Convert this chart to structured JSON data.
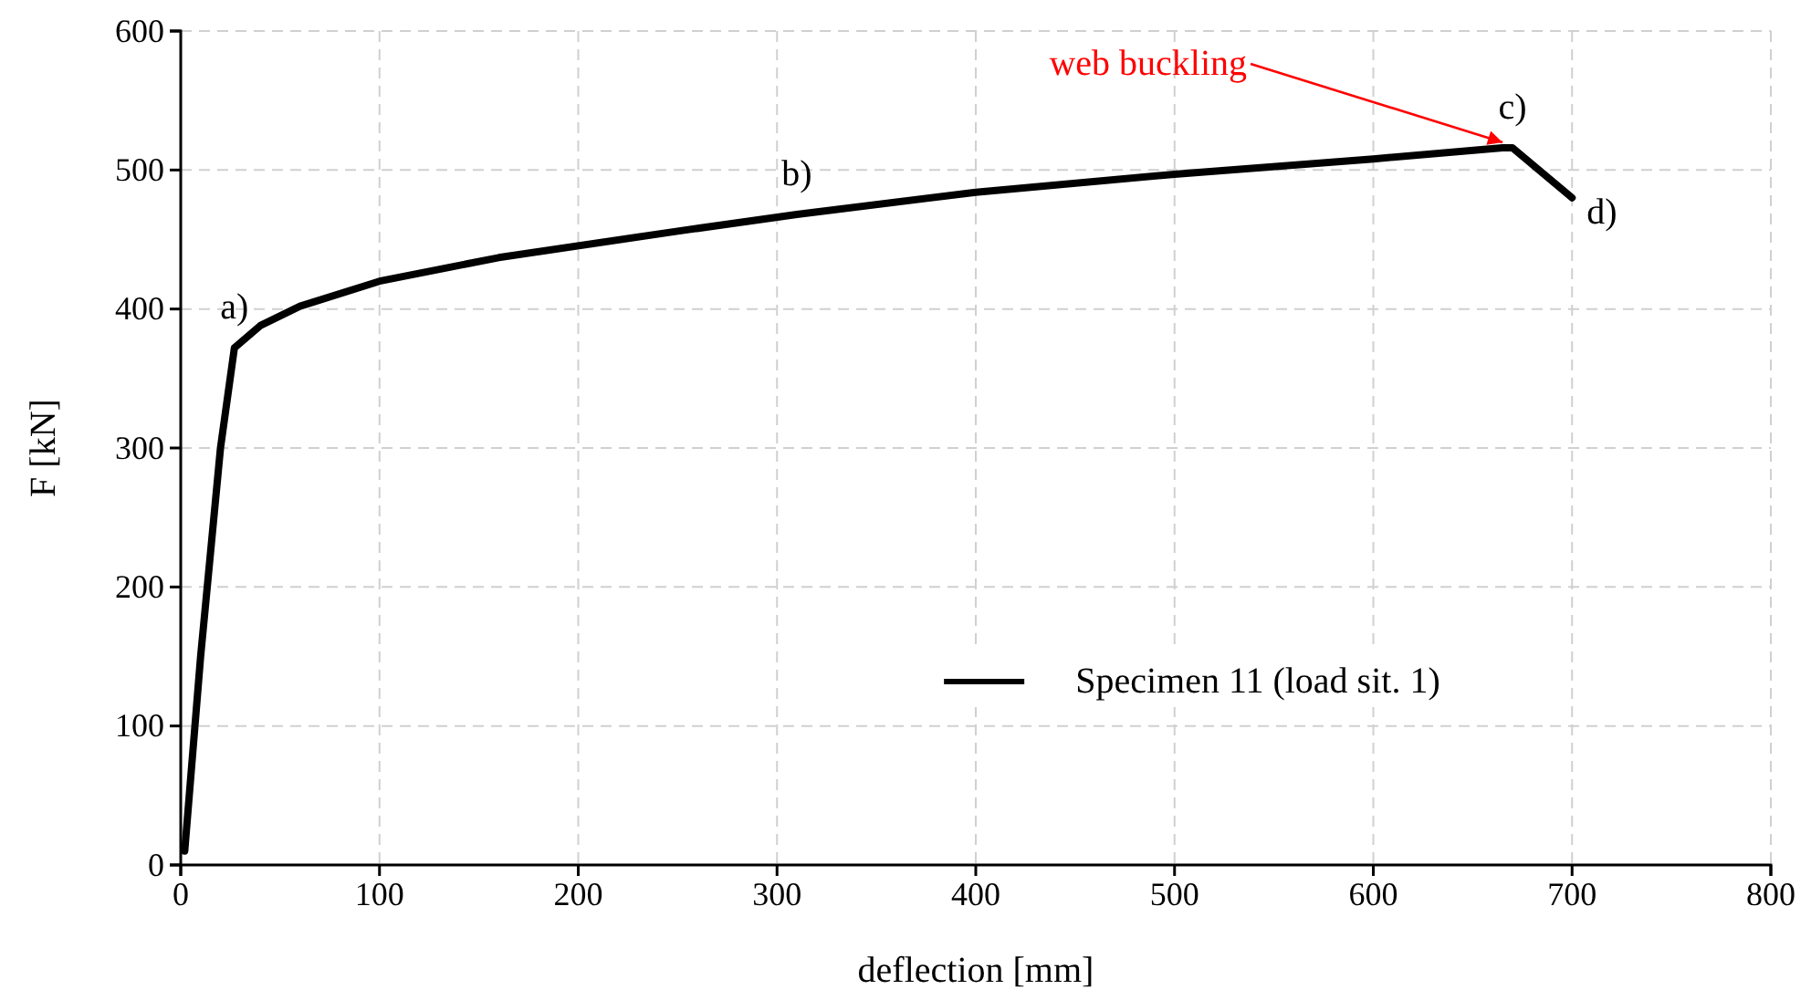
{
  "chart_data": {
    "type": "line",
    "xlabel": "deflection [mm]",
    "ylabel": "F [kN]",
    "series": [
      {
        "name": "Specimen 11 (load sit. 1)",
        "color": "#000000",
        "x": [
          2,
          10,
          20,
          27,
          40,
          60,
          100,
          160,
          250,
          310,
          400,
          500,
          600,
          665,
          670,
          700
        ],
        "values": [
          10,
          150,
          300,
          372,
          388,
          402,
          420,
          437,
          456,
          468,
          484,
          497,
          508,
          516,
          516,
          480
        ]
      }
    ],
    "xlim": [
      0,
      800
    ],
    "xticks": [
      0,
      100,
      200,
      300,
      400,
      500,
      600,
      700,
      800
    ],
    "ylim": [
      0,
      600
    ],
    "yticks": [
      0,
      100,
      200,
      300,
      400,
      500,
      600
    ],
    "grid": true,
    "legend": "bottom",
    "marker": "none",
    "line_style": "solid",
    "annotations": [
      {
        "text": "a)",
        "x": 27,
        "y": 372
      },
      {
        "text": "b)",
        "x": 310,
        "y": 468
      },
      {
        "text": "c)",
        "x": 670,
        "y": 516
      },
      {
        "text": "d)",
        "x": 700,
        "y": 480
      },
      {
        "text": "web buckling",
        "x": 665,
        "y": 516
      }
    ]
  }
}
